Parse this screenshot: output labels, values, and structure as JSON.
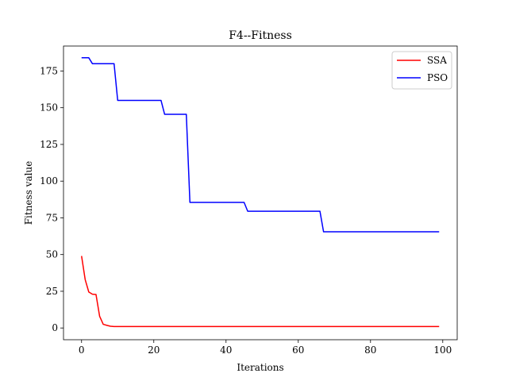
{
  "chart_data": {
    "type": "line",
    "title": "F4--Fitness",
    "xlabel": "Iterations",
    "ylabel": "Fitness value",
    "xlim": [
      -5,
      104
    ],
    "ylim": [
      -8,
      192
    ],
    "xticks": [
      0,
      20,
      40,
      60,
      80,
      100
    ],
    "yticks": [
      0,
      25,
      50,
      75,
      100,
      125,
      150,
      175
    ],
    "grid": false,
    "legend_position": "top-right",
    "series": [
      {
        "name": "SSA",
        "color": "#ff0000",
        "points": [
          [
            0,
            49
          ],
          [
            1,
            33
          ],
          [
            2,
            24.5
          ],
          [
            3,
            23
          ],
          [
            4,
            22.8
          ],
          [
            5,
            8
          ],
          [
            6,
            2.5
          ],
          [
            7,
            1.8
          ],
          [
            8,
            1.2
          ],
          [
            9,
            1
          ],
          [
            99,
            1
          ]
        ]
      },
      {
        "name": "PSO",
        "color": "#0000ff",
        "points": [
          [
            0,
            184
          ],
          [
            2,
            184
          ],
          [
            3,
            180
          ],
          [
            9,
            180
          ],
          [
            10,
            155
          ],
          [
            22,
            155
          ],
          [
            23,
            145.5
          ],
          [
            29,
            145.5
          ],
          [
            30,
            85.5
          ],
          [
            45,
            85.5
          ],
          [
            46,
            79.5
          ],
          [
            66,
            79.5
          ],
          [
            67,
            65.5
          ],
          [
            99,
            65.5
          ]
        ]
      }
    ]
  }
}
